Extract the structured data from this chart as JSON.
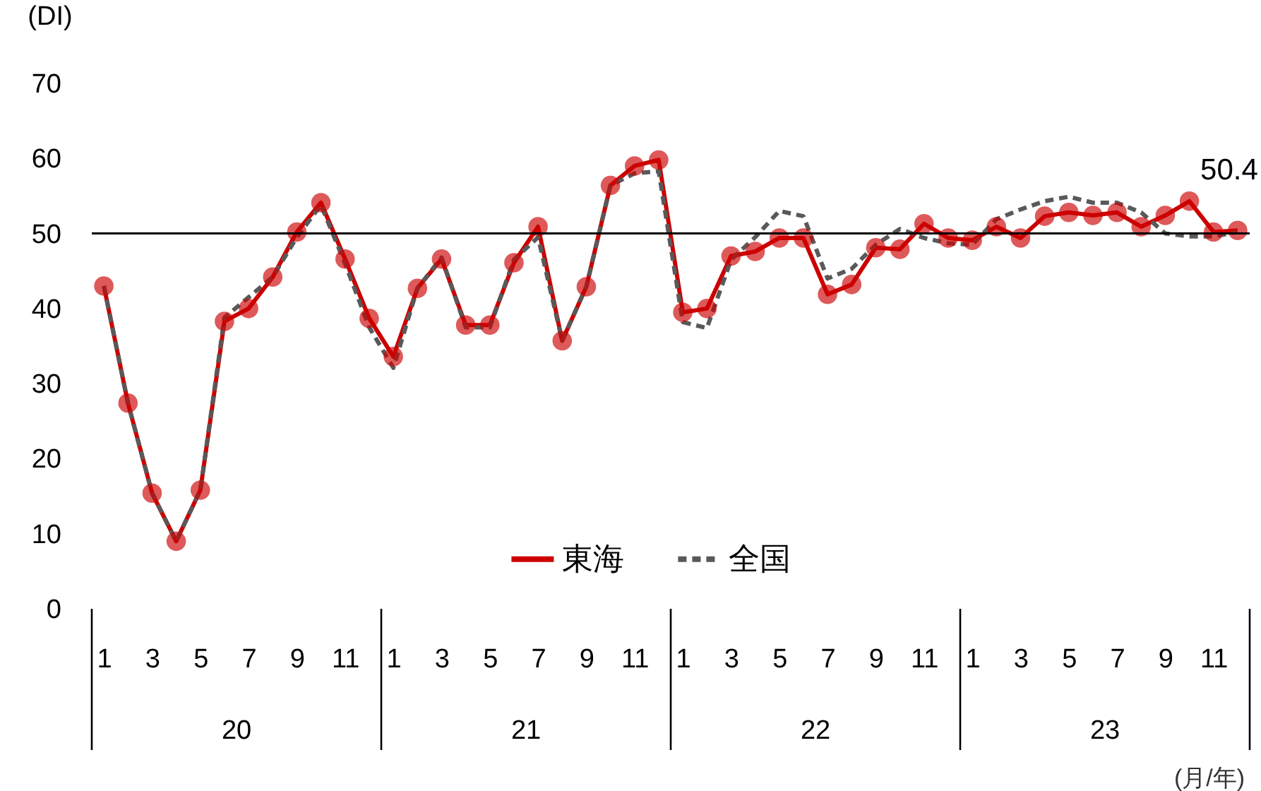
{
  "chart_data": {
    "type": "line",
    "ylabel": "(DI)",
    "xlabel": "(月/年)",
    "categories": [
      "1",
      null,
      "3",
      null,
      "5",
      null,
      "7",
      null,
      "9",
      null,
      "11",
      null,
      "1",
      null,
      "3",
      null,
      "5",
      null,
      "7",
      null,
      "9",
      null,
      "11",
      null,
      "1",
      null,
      "3",
      null,
      "5",
      null,
      "7",
      null,
      "9",
      null,
      "11",
      null,
      "1",
      null,
      "3",
      null,
      "5",
      null,
      "7",
      null,
      "9",
      null,
      "11",
      null
    ],
    "annotations": [
      "20",
      "21",
      "22",
      "23"
    ],
    "ylim": [
      0,
      70
    ],
    "yticks": [
      0,
      10,
      20,
      30,
      40,
      50,
      60,
      70
    ],
    "grid": false,
    "legend": "bottom",
    "ref_lines": [
      {
        "axis": "y",
        "value": 50,
        "color": "#000000"
      }
    ],
    "series": [
      {
        "name": "東海",
        "color": "#cc0000",
        "marker": "circle",
        "line_style": "solid",
        "values": [
          43.0,
          27.4,
          15.4,
          9.0,
          15.8,
          38.3,
          40.0,
          44.2,
          50.2,
          54.1,
          46.6,
          38.7,
          33.6,
          42.7,
          46.6,
          37.8,
          37.8,
          46.1,
          50.9,
          35.7,
          42.9,
          56.4,
          59.0,
          59.8,
          39.5,
          40.0,
          47.0,
          47.6,
          49.4,
          49.4,
          41.9,
          43.2,
          48.1,
          47.9,
          51.3,
          49.4,
          49.1,
          50.9,
          49.4,
          52.3,
          52.8,
          52.4,
          52.8,
          50.9,
          52.4,
          54.3,
          50.2,
          50.4
        ],
        "value_labels": [
          null,
          null,
          null,
          null,
          null,
          null,
          null,
          null,
          null,
          null,
          null,
          null,
          null,
          null,
          null,
          null,
          null,
          null,
          null,
          null,
          null,
          null,
          null,
          null,
          null,
          null,
          null,
          null,
          null,
          null,
          null,
          null,
          null,
          null,
          null,
          null,
          null,
          null,
          null,
          null,
          null,
          null,
          null,
          null,
          null,
          null,
          null,
          "50.4"
        ]
      },
      {
        "name": "全国",
        "color": "#595959",
        "marker": "none",
        "line_style": "dashed",
        "values": [
          43.0,
          27.4,
          15.4,
          9.0,
          15.8,
          38.8,
          41.5,
          44.2,
          49.5,
          53.8,
          46.0,
          37.5,
          32.1,
          42.7,
          46.8,
          37.5,
          37.5,
          46.5,
          49.5,
          35.7,
          42.9,
          56.4,
          58.0,
          58.3,
          38.2,
          37.4,
          46.5,
          49.5,
          53.0,
          52.3,
          44.0,
          45.3,
          48.5,
          50.6,
          49.4,
          48.7,
          48.5,
          51.9,
          53.2,
          54.3,
          54.9,
          54.1,
          54.1,
          52.8,
          50.0,
          49.6,
          49.6,
          50.2
        ]
      }
    ]
  }
}
